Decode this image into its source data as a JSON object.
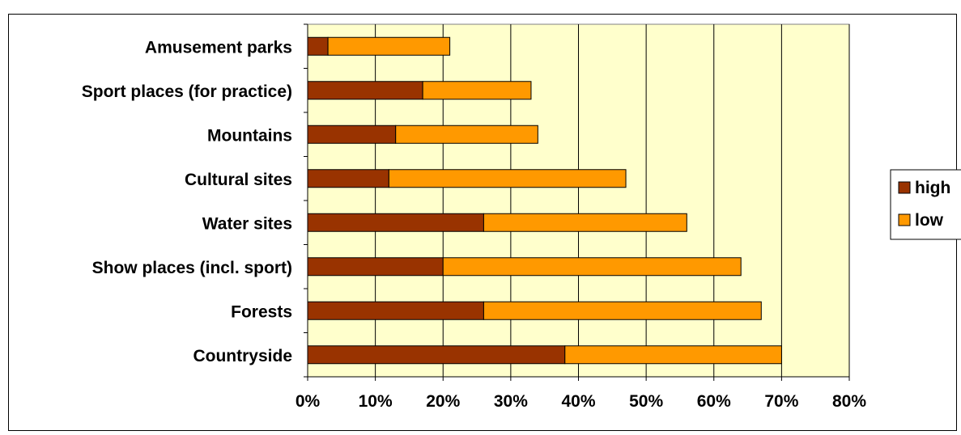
{
  "chart_data": {
    "type": "bar",
    "orientation": "horizontal",
    "stacked": true,
    "categories": [
      "Amusement parks",
      "Sport places (for practice)",
      "Mountains",
      "Cultural sites",
      "Water sites",
      "Show places (incl. sport)",
      "Forests",
      "Countryside"
    ],
    "series": [
      {
        "name": "high",
        "values": [
          3,
          17,
          13,
          12,
          26,
          20,
          26,
          38
        ],
        "color": "#993300"
      },
      {
        "name": "low",
        "values": [
          18,
          16,
          21,
          35,
          30,
          44,
          41,
          32
        ],
        "color": "#FF9900"
      }
    ],
    "xlim": [
      0,
      80
    ],
    "xticks": [
      "0%",
      "10%",
      "20%",
      "30%",
      "40%",
      "50%",
      "60%",
      "70%",
      "80%"
    ],
    "grid": "vertical",
    "legend": "right",
    "plot_background": "#FFFFCC"
  }
}
